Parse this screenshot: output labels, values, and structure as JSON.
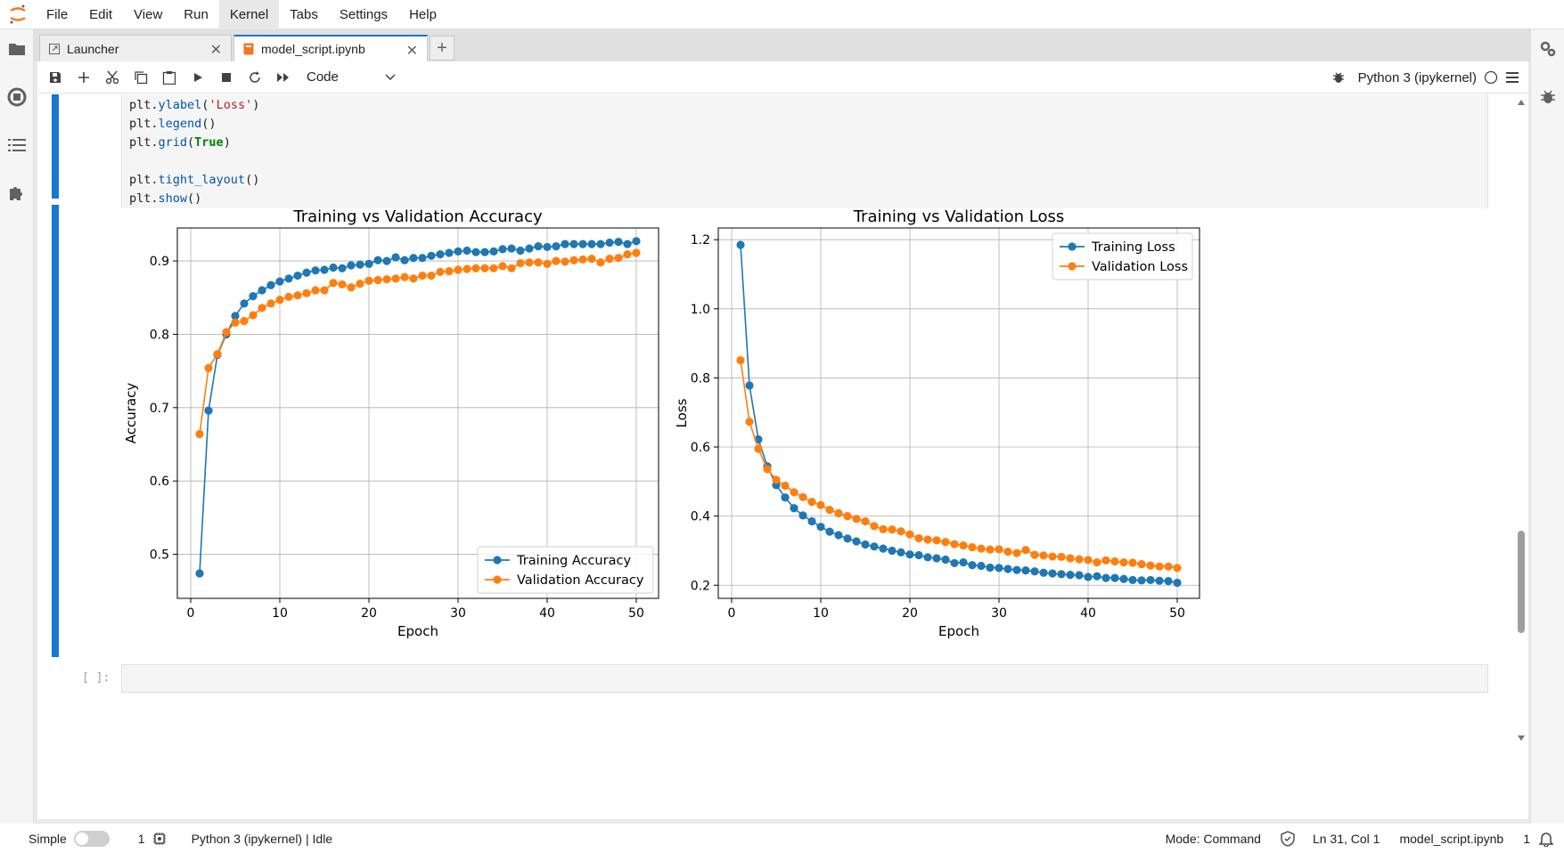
{
  "menubar": {
    "items": [
      "File",
      "Edit",
      "View",
      "Run",
      "Kernel",
      "Tabs",
      "Settings",
      "Help"
    ]
  },
  "tabs": [
    {
      "label": "Launcher",
      "icon": "launcher-icon"
    },
    {
      "label": "model_script.ipynb",
      "icon": "notebook-icon"
    }
  ],
  "toolbar": {
    "cell_type": "Code",
    "kernel_name": "Python 3 (ipykernel)"
  },
  "code_cell": {
    "lines": [
      [
        {
          "t": "plt.",
          "c": "op"
        },
        {
          "t": "ylabel",
          "c": "fn"
        },
        {
          "t": "(",
          "c": "op"
        },
        {
          "t": "'Loss'",
          "c": "str"
        },
        {
          "t": ")",
          "c": "op"
        }
      ],
      [
        {
          "t": "plt.",
          "c": "op"
        },
        {
          "t": "legend",
          "c": "fn"
        },
        {
          "t": "()",
          "c": "op"
        }
      ],
      [
        {
          "t": "plt.",
          "c": "op"
        },
        {
          "t": "grid",
          "c": "fn"
        },
        {
          "t": "(",
          "c": "op"
        },
        {
          "t": "True",
          "c": "kw"
        },
        {
          "t": ")",
          "c": "op"
        }
      ],
      [],
      [
        {
          "t": "plt.",
          "c": "op"
        },
        {
          "t": "tight_layout",
          "c": "fn"
        },
        {
          "t": "()",
          "c": "op"
        }
      ],
      [
        {
          "t": "plt.",
          "c": "op"
        },
        {
          "t": "show",
          "c": "fn"
        },
        {
          "t": "()",
          "c": "op"
        }
      ]
    ]
  },
  "empty_cell": {
    "prompt": "[ ]:"
  },
  "statusbar": {
    "mode_label": "Simple",
    "terminals": "1",
    "kernel_status": "Python 3 (ipykernel) | Idle",
    "mode": "Mode: Command",
    "cursor": "Ln 31, Col 1",
    "filename": "model_script.ipynb",
    "notifications": "1"
  },
  "chart_data": [
    {
      "type": "line",
      "title": "Training vs Validation Accuracy",
      "xlabel": "Epoch",
      "ylabel": "Accuracy",
      "xlim": [
        -1.5,
        52.5
      ],
      "ylim": [
        0.44,
        0.945
      ],
      "xticks": [
        0,
        10,
        20,
        30,
        40,
        50
      ],
      "yticks": [
        0.5,
        0.6,
        0.7,
        0.8,
        0.9
      ],
      "grid": true,
      "legend": "lower-right",
      "x": [
        1,
        2,
        3,
        4,
        5,
        6,
        7,
        8,
        9,
        10,
        11,
        12,
        13,
        14,
        15,
        16,
        17,
        18,
        19,
        20,
        21,
        22,
        23,
        24,
        25,
        26,
        27,
        28,
        29,
        30,
        31,
        32,
        33,
        34,
        35,
        36,
        37,
        38,
        39,
        40,
        41,
        42,
        43,
        44,
        45,
        46,
        47,
        48,
        49,
        50
      ],
      "series": [
        {
          "name": "Training Accuracy",
          "color": "#1f77b4",
          "values": [
            0.474,
            0.696,
            0.772,
            0.8,
            0.825,
            0.842,
            0.852,
            0.86,
            0.867,
            0.872,
            0.876,
            0.88,
            0.884,
            0.887,
            0.888,
            0.891,
            0.89,
            0.894,
            0.895,
            0.896,
            0.901,
            0.9,
            0.905,
            0.901,
            0.904,
            0.904,
            0.907,
            0.909,
            0.911,
            0.913,
            0.914,
            0.912,
            0.912,
            0.913,
            0.916,
            0.917,
            0.914,
            0.917,
            0.92,
            0.919,
            0.92,
            0.923,
            0.923,
            0.923,
            0.923,
            0.923,
            0.925,
            0.926,
            0.923,
            0.927
          ]
        },
        {
          "name": "Validation Accuracy",
          "color": "#ff7f0e",
          "values": [
            0.664,
            0.754,
            0.773,
            0.803,
            0.816,
            0.818,
            0.826,
            0.836,
            0.842,
            0.847,
            0.851,
            0.853,
            0.856,
            0.86,
            0.86,
            0.87,
            0.868,
            0.864,
            0.869,
            0.873,
            0.874,
            0.875,
            0.876,
            0.878,
            0.876,
            0.88,
            0.88,
            0.885,
            0.886,
            0.888,
            0.889,
            0.89,
            0.89,
            0.89,
            0.893,
            0.89,
            0.897,
            0.898,
            0.898,
            0.896,
            0.9,
            0.899,
            0.901,
            0.902,
            0.903,
            0.898,
            0.903,
            0.904,
            0.909,
            0.911
          ]
        }
      ]
    },
    {
      "type": "line",
      "title": "Training vs Validation Loss",
      "xlabel": "Epoch",
      "ylabel": "Loss",
      "xlim": [
        -1.5,
        52.5
      ],
      "ylim": [
        0.162,
        1.234
      ],
      "xticks": [
        0,
        10,
        20,
        30,
        40,
        50
      ],
      "yticks": [
        0.2,
        0.4,
        0.6,
        0.8,
        1.0,
        1.2
      ],
      "grid": true,
      "legend": "top-right",
      "x": [
        1,
        2,
        3,
        4,
        5,
        6,
        7,
        8,
        9,
        10,
        11,
        12,
        13,
        14,
        15,
        16,
        17,
        18,
        19,
        20,
        21,
        22,
        23,
        24,
        25,
        26,
        27,
        28,
        29,
        30,
        31,
        32,
        33,
        34,
        35,
        36,
        37,
        38,
        39,
        40,
        41,
        42,
        43,
        44,
        45,
        46,
        47,
        48,
        49,
        50
      ],
      "series": [
        {
          "name": "Training Loss",
          "color": "#1f77b4",
          "values": [
            1.185,
            0.778,
            0.622,
            0.544,
            0.49,
            0.454,
            0.423,
            0.402,
            0.385,
            0.369,
            0.355,
            0.345,
            0.335,
            0.327,
            0.318,
            0.312,
            0.306,
            0.3,
            0.295,
            0.289,
            0.287,
            0.281,
            0.278,
            0.274,
            0.264,
            0.266,
            0.258,
            0.256,
            0.251,
            0.25,
            0.247,
            0.244,
            0.243,
            0.24,
            0.236,
            0.234,
            0.232,
            0.23,
            0.229,
            0.224,
            0.226,
            0.221,
            0.221,
            0.218,
            0.215,
            0.214,
            0.215,
            0.213,
            0.212,
            0.207
          ]
        },
        {
          "name": "Validation Loss",
          "color": "#ff7f0e",
          "values": [
            0.851,
            0.673,
            0.595,
            0.536,
            0.505,
            0.488,
            0.469,
            0.455,
            0.441,
            0.432,
            0.418,
            0.408,
            0.4,
            0.392,
            0.385,
            0.371,
            0.362,
            0.361,
            0.356,
            0.347,
            0.336,
            0.332,
            0.33,
            0.325,
            0.319,
            0.315,
            0.31,
            0.306,
            0.303,
            0.304,
            0.297,
            0.293,
            0.302,
            0.288,
            0.286,
            0.283,
            0.282,
            0.278,
            0.275,
            0.273,
            0.266,
            0.272,
            0.269,
            0.266,
            0.265,
            0.261,
            0.257,
            0.254,
            0.254,
            0.25
          ]
        }
      ]
    }
  ]
}
